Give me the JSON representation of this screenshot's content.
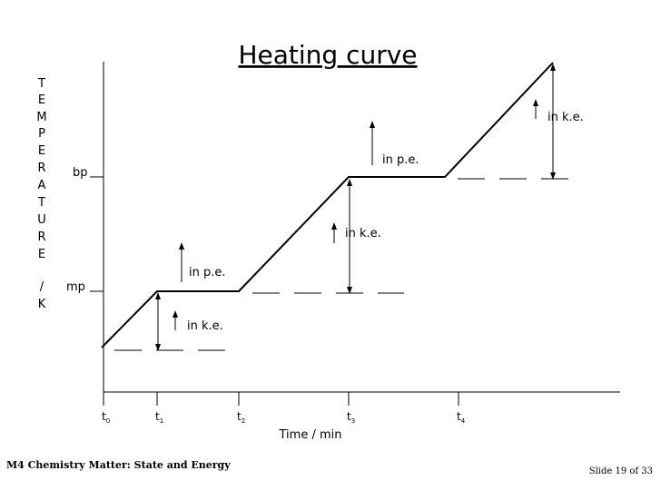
{
  "slide": {
    "footer_left": "M4 Chemistry Matter: State and Energy",
    "footer_right": "Slide 19 of 33"
  },
  "chart_data": {
    "type": "line",
    "title": "Heating curve",
    "xlabel": "Time / min",
    "ylabel_letters": [
      "T",
      "E",
      "M",
      "P",
      "E",
      "R",
      "A",
      "T",
      "U",
      "R",
      "E",
      "/",
      "K"
    ],
    "y_ticks": [
      {
        "label": "mp",
        "level": "melting point"
      },
      {
        "label": "bp",
        "level": "boiling point"
      }
    ],
    "x_ticks": [
      {
        "base": "t",
        "sub": "0"
      },
      {
        "base": "t",
        "sub": "1"
      },
      {
        "base": "t",
        "sub": "2"
      },
      {
        "base": "t",
        "sub": "3"
      },
      {
        "base": "t",
        "sub": "4"
      }
    ],
    "segments": [
      {
        "from": "t0",
        "to": "t1",
        "shape": "rising",
        "annotation": "in k.e."
      },
      {
        "from": "t1",
        "to": "t2",
        "shape": "flat at mp",
        "annotation": "in p.e."
      },
      {
        "from": "t2",
        "to": "t3",
        "shape": "rising",
        "annotation": "in k.e."
      },
      {
        "from": "t3",
        "to": "t4",
        "shape": "flat at bp",
        "annotation": "in p.e."
      },
      {
        "from": "t4",
        "to": "end",
        "shape": "rising",
        "annotation": "in k.e."
      }
    ],
    "grid": false,
    "legend": "none"
  }
}
